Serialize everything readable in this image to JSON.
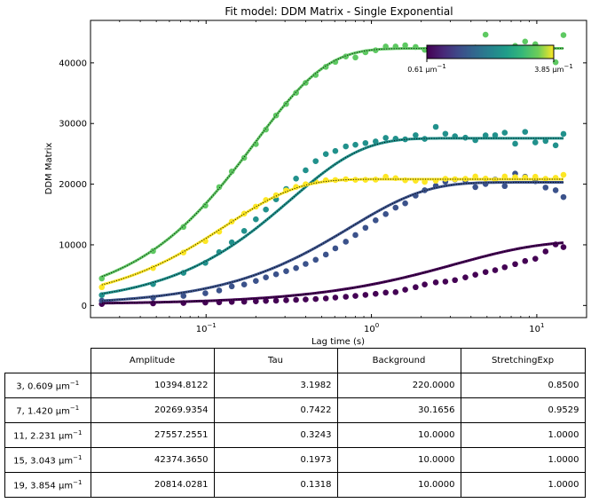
{
  "chart_data": {
    "type": "scatter",
    "title": "Fit model: DDM Matrix - Single Exponential",
    "xlabel": "Lag time (s)",
    "ylabel": "DDM Matrix",
    "xscale": "log",
    "xlim": [
      0.02,
      20
    ],
    "ylim": [
      -2000,
      47000
    ],
    "x_ticks": [
      0.1,
      1,
      10
    ],
    "x_tick_labels": [
      {
        "base": "10",
        "exp": "−1"
      },
      {
        "base": "10",
        "exp": "0"
      },
      {
        "base": "10",
        "exp": "1"
      }
    ],
    "y_ticks": [
      0,
      10000,
      20000,
      30000,
      40000
    ],
    "y_tick_labels": [
      "0",
      "10000",
      "20000",
      "30000",
      "40000"
    ],
    "colorbar": {
      "location": "upper-right",
      "min_label": {
        "value": "0.61 μm",
        "exp": "−1"
      },
      "max_label": {
        "value": "3.85 μm",
        "exp": "−1"
      },
      "colormap": "viridis"
    },
    "series": [
      {
        "color": "#440154",
        "fit": {
          "amplitude": 10394.8122,
          "tau": 3.1982,
          "background": 220.0,
          "stretch": 0.85
        },
        "x": [
          0.0234,
          0.0478,
          0.073,
          0.099,
          0.12,
          0.143,
          0.17,
          0.2,
          0.23,
          0.265,
          0.305,
          0.35,
          0.4,
          0.46,
          0.53,
          0.605,
          0.7,
          0.8,
          0.92,
          1.06,
          1.22,
          1.4,
          1.6,
          1.85,
          2.1,
          2.45,
          2.8,
          3.2,
          3.7,
          4.25,
          4.9,
          5.6,
          6.4,
          7.4,
          8.5,
          9.8,
          11.3,
          13.0,
          14.5
        ],
        "y": [
          239,
          342,
          411,
          479,
          513,
          582,
          616,
          685,
          753,
          787,
          856,
          924,
          993,
          1061,
          1164,
          1301,
          1438,
          1575,
          1746,
          1917,
          2123,
          2191,
          2602,
          3013,
          3458,
          3801,
          3938,
          4178,
          4623,
          5068,
          5513,
          5821,
          6301,
          6814,
          7328,
          7705,
          8904,
          10068,
          9623
        ]
      },
      {
        "color": "#3b528b",
        "fit": {
          "amplitude": 20269.9354,
          "tau": 0.7422,
          "background": 30.1656,
          "stretch": 0.9529
        },
        "x": [
          0.0234,
          0.0478,
          0.073,
          0.099,
          0.12,
          0.143,
          0.17,
          0.2,
          0.23,
          0.265,
          0.305,
          0.35,
          0.4,
          0.46,
          0.53,
          0.605,
          0.7,
          0.8,
          0.92,
          1.06,
          1.22,
          1.4,
          1.6,
          1.85,
          2.1,
          2.45,
          2.8,
          3.2,
          3.7,
          4.25,
          4.9,
          5.6,
          6.4,
          7.4,
          8.5,
          9.8,
          11.3,
          13.0,
          14.5
        ],
        "y": [
          787,
          1267,
          1575,
          2020,
          2465,
          3150,
          3458,
          4041,
          4623,
          5136,
          5650,
          6164,
          6849,
          7534,
          8390,
          9417,
          10513,
          11609,
          12807,
          14040,
          15066,
          16127,
          16846,
          18112,
          19002,
          19721,
          20406,
          20766,
          20680,
          19516,
          20029,
          20749,
          19687,
          21742,
          21228,
          20475,
          19447,
          19002,
          17872
        ]
      },
      {
        "color": "#21918c",
        "fit": {
          "amplitude": 27557.2551,
          "tau": 0.3243,
          "background": 10.0,
          "stretch": 1.0
        },
        "x": [
          0.0234,
          0.0478,
          0.073,
          0.099,
          0.12,
          0.143,
          0.17,
          0.2,
          0.23,
          0.265,
          0.305,
          0.35,
          0.4,
          0.46,
          0.53,
          0.605,
          0.7,
          0.8,
          0.92,
          1.06,
          1.22,
          1.4,
          1.6,
          1.85,
          2.1,
          2.45,
          2.8,
          3.2,
          3.7,
          4.25,
          4.9,
          5.6,
          6.4,
          7.4,
          8.5,
          9.8,
          11.3,
          13.0,
          14.5
        ],
        "y": [
          1712,
          3527,
          5376,
          7020,
          8801,
          10410,
          12294,
          14211,
          15820,
          17498,
          19207,
          20920,
          22289,
          23796,
          24960,
          25474,
          26227,
          26501,
          26775,
          27049,
          27631,
          27494,
          27391,
          28076,
          27460,
          29446,
          28316,
          27905,
          27665,
          27254,
          28042,
          28076,
          28487,
          26672,
          28624,
          26878,
          27117,
          26398,
          28282
        ]
      },
      {
        "color": "#5ec962",
        "fit": {
          "amplitude": 42374.365,
          "tau": 0.1973,
          "background": 10.0,
          "stretch": 1.0
        },
        "x": [
          0.0234,
          0.0478,
          0.073,
          0.099,
          0.12,
          0.143,
          0.17,
          0.2,
          0.23,
          0.265,
          0.305,
          0.35,
          0.4,
          0.46,
          0.53,
          0.605,
          0.7,
          0.8,
          0.92,
          1.06,
          1.22,
          1.4,
          1.6,
          1.85,
          2.1,
          2.45,
          2.8,
          3.2,
          3.7,
          4.25,
          4.9,
          5.6,
          6.4,
          7.4,
          8.5,
          9.8,
          11.3,
          13.0,
          14.5
        ],
        "y": [
          4452,
          8973,
          12944,
          16470,
          19515,
          22083,
          24343,
          26604,
          29001,
          31330,
          33213,
          35062,
          36706,
          38006,
          39341,
          40163,
          41053,
          40882,
          41738,
          42080,
          42697,
          42696,
          42903,
          42628,
          42149,
          42457,
          42423,
          41943,
          41978,
          42526,
          44649,
          42115,
          42320,
          42800,
          43519,
          43074,
          42320,
          40095,
          44580
        ]
      },
      {
        "color": "#fde725",
        "fit": {
          "amplitude": 20814.0281,
          "tau": 0.1318,
          "background": 10.0,
          "stretch": 1.0
        },
        "x": [
          0.0234,
          0.0478,
          0.073,
          0.099,
          0.12,
          0.143,
          0.17,
          0.2,
          0.23,
          0.265,
          0.305,
          0.35,
          0.4,
          0.46,
          0.53,
          0.605,
          0.7,
          0.8,
          0.92,
          1.06,
          1.22,
          1.4,
          1.6,
          1.85,
          2.1,
          2.45,
          2.8,
          3.2,
          3.7,
          4.25,
          4.9,
          5.6,
          6.4,
          7.4,
          8.5,
          9.8,
          11.3,
          13.0,
          14.5
        ],
        "y": [
          3013,
          6164,
          8733,
          10616,
          12157,
          13835,
          15135,
          16299,
          17394,
          18181,
          18969,
          19550,
          19995,
          20406,
          20645,
          20680,
          20817,
          20714,
          20714,
          20748,
          21228,
          20988,
          20646,
          20578,
          20372,
          20578,
          20885,
          20817,
          20886,
          21262,
          20920,
          20680,
          21262,
          21160,
          21125,
          21228,
          20885,
          21057,
          21536
        ]
      }
    ]
  },
  "table": {
    "columns": [
      "Amplitude",
      "Tau",
      "Background",
      "StretchingExp"
    ],
    "rows": [
      {
        "label": "3, 0.609 μm",
        "exp": "−1",
        "values": [
          "10394.8122",
          "3.1982",
          "220.0000",
          "0.8500"
        ]
      },
      {
        "label": "7, 1.420 μm",
        "exp": "−1",
        "values": [
          "20269.9354",
          "0.7422",
          "30.1656",
          "0.9529"
        ]
      },
      {
        "label": "11, 2.231 μm",
        "exp": "−1",
        "values": [
          "27557.2551",
          "0.3243",
          "10.0000",
          "1.0000"
        ]
      },
      {
        "label": "15, 3.043 μm",
        "exp": "−1",
        "values": [
          "42374.3650",
          "0.1973",
          "10.0000",
          "1.0000"
        ]
      },
      {
        "label": "19, 3.854 μm",
        "exp": "−1",
        "values": [
          "20814.0281",
          "0.1318",
          "10.0000",
          "1.0000"
        ]
      }
    ]
  }
}
